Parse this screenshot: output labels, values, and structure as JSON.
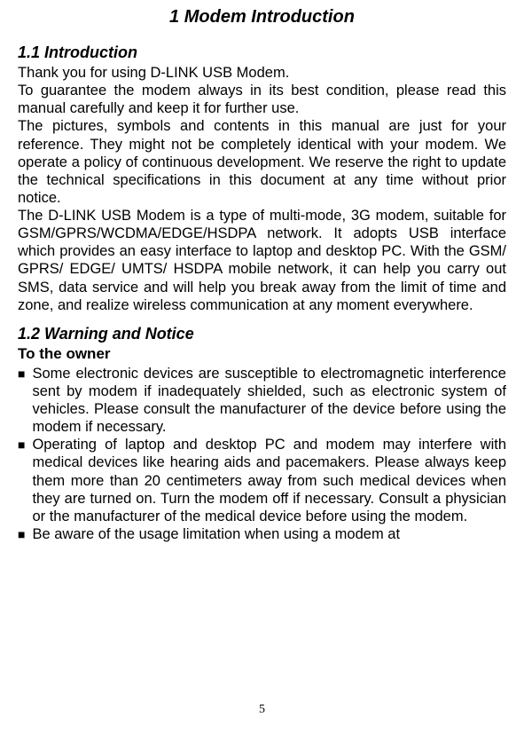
{
  "title": "1 Modem Introduction",
  "section1": {
    "heading": "1.1 Introduction",
    "p1": "Thank you for using D-LINK USB Modem.",
    "p2": "To guarantee the modem always in its best condition, please read this manual carefully and keep it for further use.",
    "p3": "The pictures, symbols and contents in this manual are just for your reference. They might not be completely identical with your modem. We operate a policy of continuous development. We reserve the right to update the technical specifications in this document at any time without prior notice.",
    "p4": "The D-LINK USB Modem is a type of multi-mode, 3G modem, suitable for GSM/GPRS/WCDMA/EDGE/HSDPA network. It adopts USB interface which provides an easy interface to laptop and desktop PC. With the GSM/ GPRS/ EDGE/ UMTS/ HSDPA mobile network, it can help you carry out SMS, data service and will help you break away from the limit of time and zone, and realize wireless communication at any moment everywhere."
  },
  "section2": {
    "heading": "1.2 Warning and Notice",
    "subheading": "To the owner",
    "bullets": [
      "Some electronic devices are susceptible to electromagnetic interference sent by modem if inadequately shielded, such as electronic system of vehicles. Please consult the manufacturer of the device before using the modem if necessary.",
      "Operating of laptop and desktop PC and modem may interfere with medical devices like hearing aids and pacemakers. Please always keep them more than 20 centimeters away from such medical devices when they are turned on. Turn the modem off if necessary. Consult a physician or the manufacturer of the medical device before using the modem.",
      "Be aware of the usage limitation when using a modem at"
    ]
  },
  "pageNumber": "5",
  "bulletMarker": "■"
}
